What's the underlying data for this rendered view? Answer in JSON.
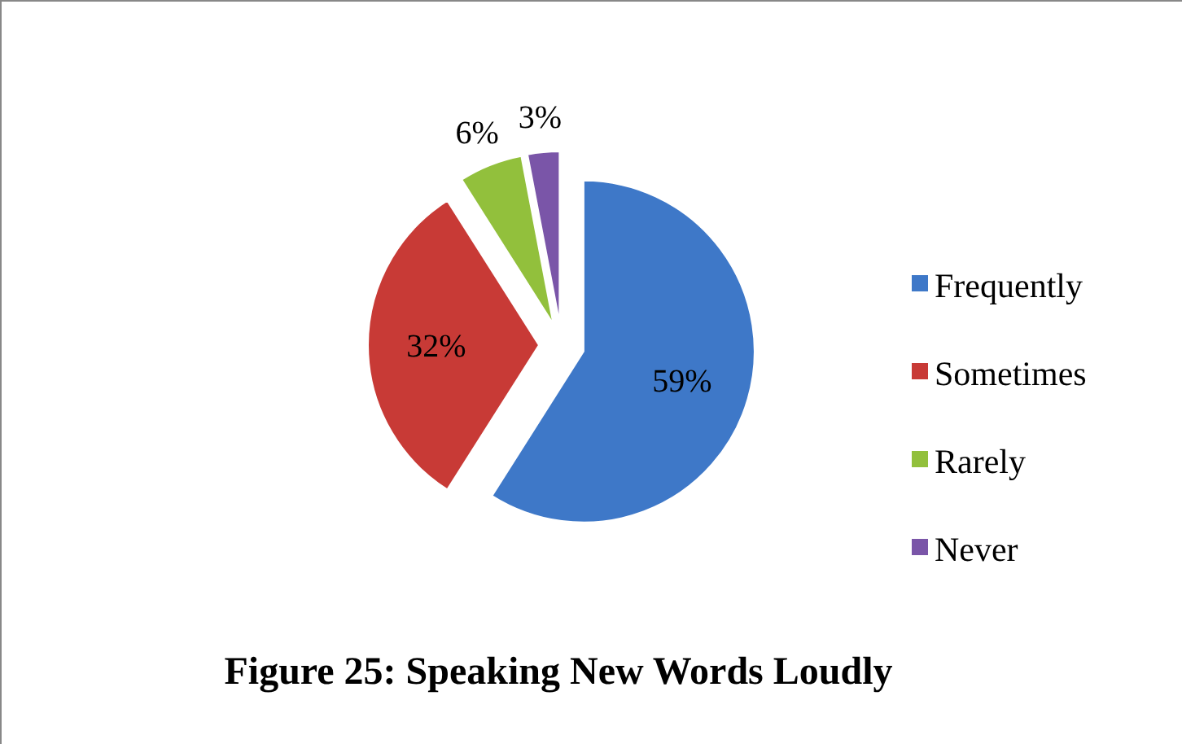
{
  "chart_data": {
    "type": "pie",
    "title": "Figure 25: Speaking New Words Loudly",
    "categories": [
      "Frequently",
      "Sometimes",
      "Rarely",
      "Never"
    ],
    "values": [
      59,
      32,
      6,
      3
    ],
    "colors": [
      "#3e78c8",
      "#c83a36",
      "#92c03c",
      "#7a55a8"
    ],
    "value_labels": [
      "59%",
      "32%",
      "6%",
      "3%"
    ],
    "legend": "right"
  }
}
